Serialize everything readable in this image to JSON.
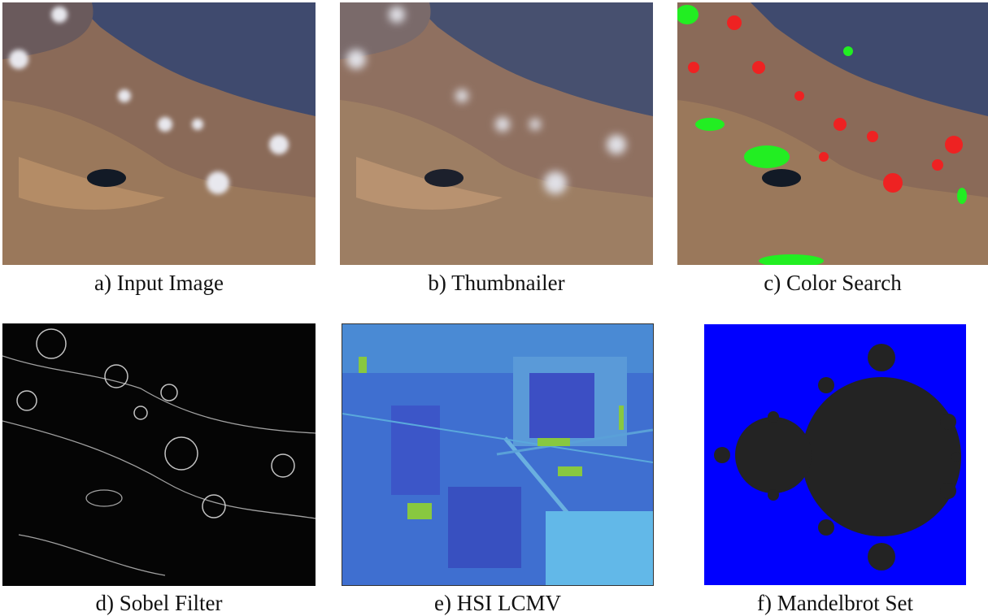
{
  "figure": {
    "captions": {
      "a": "a)   Input Image",
      "b": "b) Thumbnailer",
      "c": "c) Color Search",
      "d": "d) Sobel Filter",
      "e": "e) HSI LCMV",
      "f": "f) Mandelbrot Set"
    }
  }
}
